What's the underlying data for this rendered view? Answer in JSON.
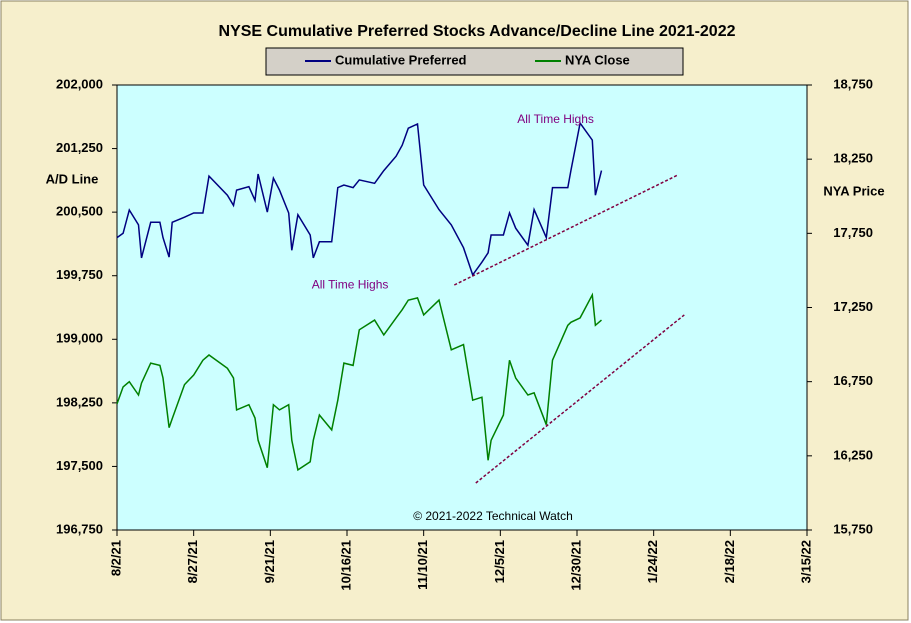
{
  "chart_data": {
    "type": "line",
    "title": "NYSE Cumulative  Preferred Stocks Advance/Decline  Line 2021-2022",
    "ylabel": "A/D Line",
    "y2label": "NYA Price",
    "credit": "© 2021-2022  Technical Watch",
    "legend": "top",
    "xlim": [
      "8/2/21",
      "3/15/22"
    ],
    "xticks": [
      "8/2/21",
      "8/27/21",
      "9/21/21",
      "10/16/21",
      "11/10/21",
      "12/5/21",
      "12/30/21",
      "1/24/22",
      "2/18/22",
      "3/15/22"
    ],
    "ylim": [
      196750,
      202000
    ],
    "yticks": [
      {
        "value": 196750,
        "label": "196,750"
      },
      {
        "value": 197500,
        "label": "197,500"
      },
      {
        "value": 198250,
        "label": "198,250"
      },
      {
        "value": 199000,
        "label": "199,000"
      },
      {
        "value": 199750,
        "label": "199,750"
      },
      {
        "value": 200500,
        "label": "200,500"
      },
      {
        "value": 201250,
        "label": "201,250"
      },
      {
        "value": 202000,
        "label": "202,000"
      }
    ],
    "y2lim": [
      15750,
      18750
    ],
    "y2ticks": [
      {
        "value": 15750,
        "label": "15,750"
      },
      {
        "value": 16250,
        "label": "16,250"
      },
      {
        "value": 16750,
        "label": "16,750"
      },
      {
        "value": 17250,
        "label": "17,250"
      },
      {
        "value": 17750,
        "label": "17,750"
      },
      {
        "value": 18250,
        "label": "18,250"
      },
      {
        "value": 18750,
        "label": "18,750"
      }
    ],
    "x": [
      "8/2/21",
      "8/4/21",
      "8/6/21",
      "8/9/21",
      "8/10/21",
      "8/13/21",
      "8/16/21",
      "8/17/21",
      "8/19/21",
      "8/20/21",
      "8/24/21",
      "8/27/21",
      "8/30/21",
      "9/1/21",
      "9/7/21",
      "9/9/21",
      "9/10/21",
      "9/14/21",
      "9/16/21",
      "9/17/21",
      "9/20/21",
      "9/22/21",
      "9/24/21",
      "9/27/21",
      "9/28/21",
      "9/30/21",
      "10/4/21",
      "10/5/21",
      "10/7/21",
      "10/11/21",
      "10/13/21",
      "10/15/21",
      "10/18/21",
      "10/20/21",
      "10/25/21",
      "10/28/21",
      "11/1/21",
      "11/3/21",
      "11/5/21",
      "11/8/21",
      "11/10/21",
      "11/15/21",
      "11/19/21",
      "11/23/21",
      "11/26/21",
      "11/29/21",
      "12/1/21",
      "12/2/21",
      "12/6/21",
      "12/8/21",
      "12/10/21",
      "12/14/21",
      "12/16/21",
      "12/20/21",
      "12/22/21",
      "12/27/21",
      "12/28/21",
      "12/31/21",
      "1/4/22",
      "1/5/22",
      "1/7/22"
    ],
    "series": [
      {
        "name": "Cumulative Preferred",
        "color": "#000080",
        "axis": "y",
        "values": [
          200200,
          200250,
          200525,
          200350,
          199960,
          200380,
          200380,
          200200,
          199970,
          200380,
          200440,
          200490,
          200490,
          200925,
          200700,
          200580,
          200760,
          200800,
          200640,
          200950,
          200500,
          200900,
          200760,
          200490,
          200050,
          200470,
          200230,
          199960,
          200150,
          200150,
          200790,
          200820,
          200790,
          200880,
          200840,
          200990,
          201160,
          201290,
          201490,
          201540,
          200820,
          200530,
          200350,
          200080,
          199760,
          199910,
          200020,
          200230,
          200230,
          200490,
          200310,
          200110,
          200530,
          200200,
          200790,
          200790,
          200990,
          201550,
          201350,
          200700,
          200990
        ]
      },
      {
        "name": "NYA Close",
        "color": "#008000",
        "axis": "y2",
        "values": [
          16600,
          16715,
          16750,
          16660,
          16740,
          16875,
          16860,
          16775,
          16440,
          16500,
          16730,
          16795,
          16895,
          16930,
          16840,
          16775,
          16560,
          16595,
          16505,
          16355,
          16170,
          16595,
          16560,
          16595,
          16355,
          16155,
          16210,
          16355,
          16525,
          16425,
          16625,
          16875,
          16860,
          17100,
          17165,
          17065,
          17180,
          17235,
          17300,
          17315,
          17200,
          17300,
          16965,
          17000,
          16625,
          16645,
          16220,
          16355,
          16525,
          16895,
          16775,
          16660,
          16675,
          16460,
          16895,
          17130,
          17150,
          17180,
          17335,
          17130,
          17165
        ]
      }
    ],
    "trendlines": [
      {
        "axis": "y",
        "color": "#800040",
        "x": [
          "11/20/21",
          "2/1/22"
        ],
        "values": [
          199640,
          200940
        ]
      },
      {
        "axis": "y2",
        "color": "#800040",
        "x": [
          "11/27/21",
          "2/3/22"
        ],
        "values": [
          16067,
          17200
        ]
      }
    ],
    "annotations": [
      {
        "text": "All Time Highs",
        "x": "12/23/21",
        "axis": "y",
        "y": 201590
      },
      {
        "text": "All Time Highs",
        "x": "10/17/21",
        "axis": "y2",
        "y": 17400
      }
    ]
  }
}
